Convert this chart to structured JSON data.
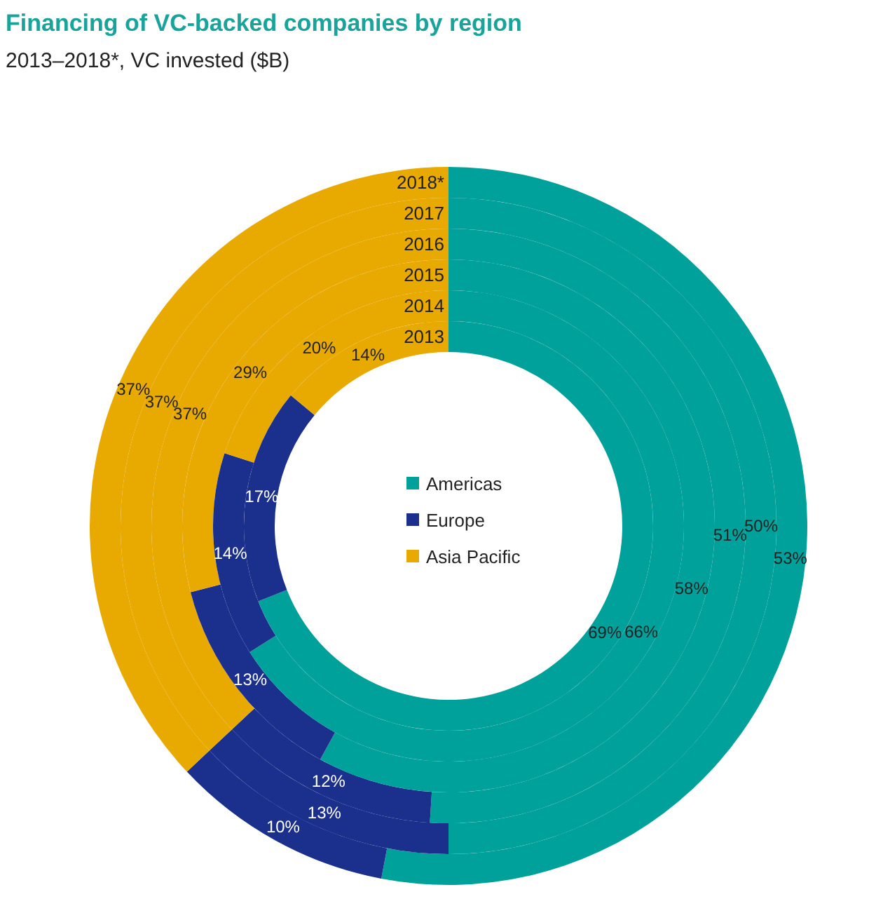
{
  "chart_data": {
    "type": "donut",
    "title": "Financing of VC-backed companies by region",
    "subtitle": "2013–2018*, VC invested ($B)",
    "categories": [
      "Americas",
      "Europe",
      "Asia Pacific"
    ],
    "colors": [
      "#00a19a",
      "#1b2f8c",
      "#e8a900"
    ],
    "series": [
      {
        "name": "2018*",
        "values": [
          53,
          10,
          37
        ],
        "value_labels": [
          "53%",
          "10%",
          "37%"
        ]
      },
      {
        "name": "2017",
        "values": [
          50,
          13,
          37
        ],
        "value_labels": [
          "50%",
          "13%",
          "37%"
        ]
      },
      {
        "name": "2016",
        "values": [
          51,
          12,
          37
        ],
        "value_labels": [
          "51%",
          "12%",
          "37%"
        ]
      },
      {
        "name": "2015",
        "values": [
          58,
          13,
          29
        ],
        "value_labels": [
          "58%",
          "13%",
          "29%"
        ]
      },
      {
        "name": "2014",
        "values": [
          66,
          14,
          20
        ],
        "value_labels": [
          "66%",
          "14%",
          "20%"
        ]
      },
      {
        "name": "2013",
        "values": [
          69,
          17,
          14
        ],
        "value_labels": [
          "69%",
          "17%",
          "14%"
        ]
      }
    ],
    "legend": "center"
  }
}
